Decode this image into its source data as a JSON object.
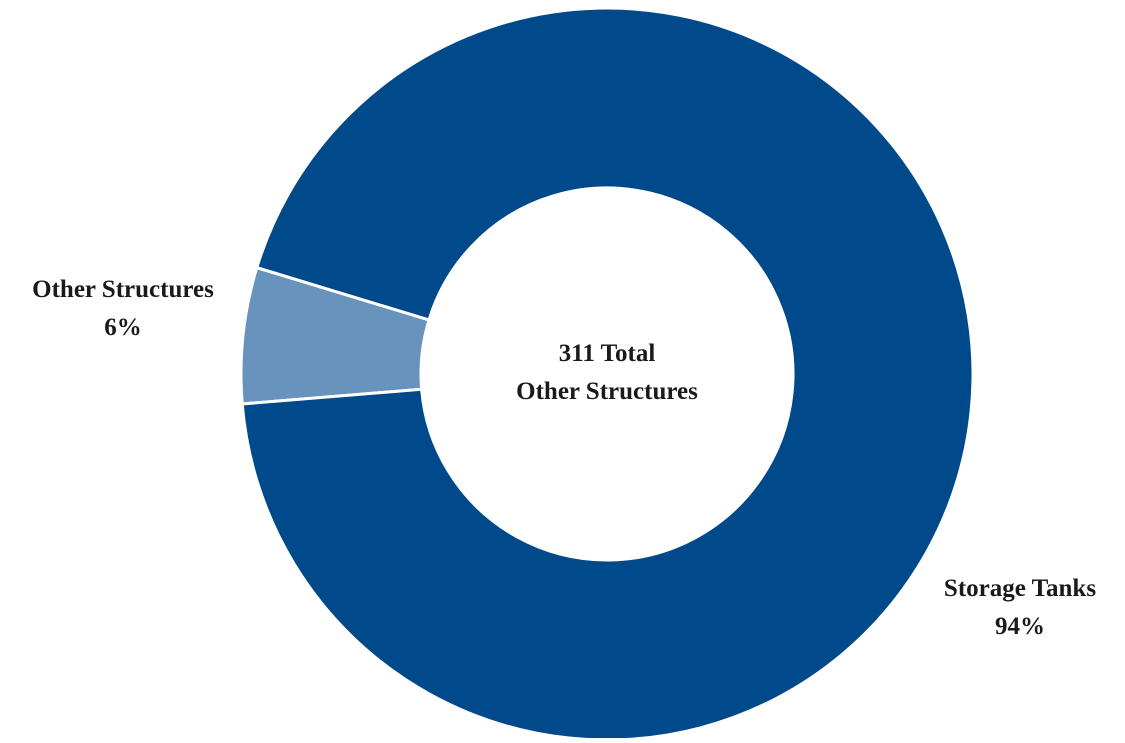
{
  "chart_data": {
    "type": "pie",
    "variant": "donut",
    "center_label": {
      "line1": "311 Total",
      "line2": "Other Structures"
    },
    "slices": [
      {
        "label": "Storage Tanks",
        "percent_label": "94%",
        "value": 94,
        "color": "#004a8c"
      },
      {
        "label": "Other Structures",
        "percent_label": "6%",
        "value": 6,
        "color": "#6793bd"
      }
    ],
    "legend": "none",
    "slice_border_color": "#ffffff"
  }
}
